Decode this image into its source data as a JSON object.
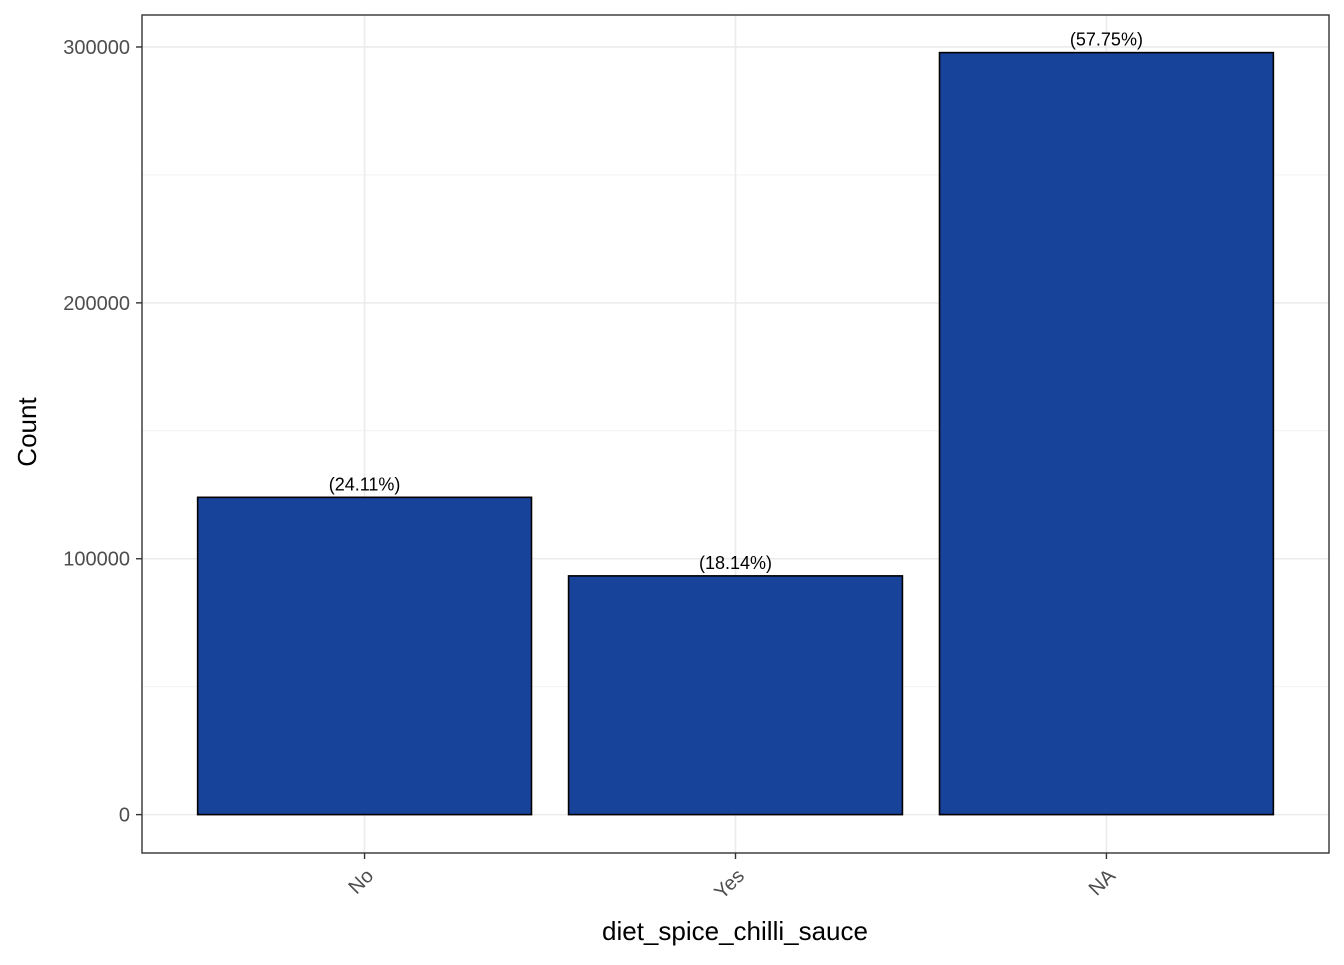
{
  "chart_data": {
    "type": "bar",
    "title": "",
    "xlabel": "diet_spice_chilli_sauce",
    "ylabel": "Count",
    "categories": [
      "No",
      "Yes",
      "NA"
    ],
    "values": [
      124000,
      93300,
      297800
    ],
    "percent_labels": [
      "(24.11%)",
      "(18.14%)",
      "(57.75%)"
    ],
    "ylim": [
      -15000,
      312500
    ],
    "yticks": [
      0,
      100000,
      200000,
      300000
    ],
    "ytick_labels": [
      "0",
      "100000",
      "200000",
      "300000"
    ],
    "grid": true,
    "bar_color": "#18439A",
    "x_tick_rotation_deg": 45
  }
}
